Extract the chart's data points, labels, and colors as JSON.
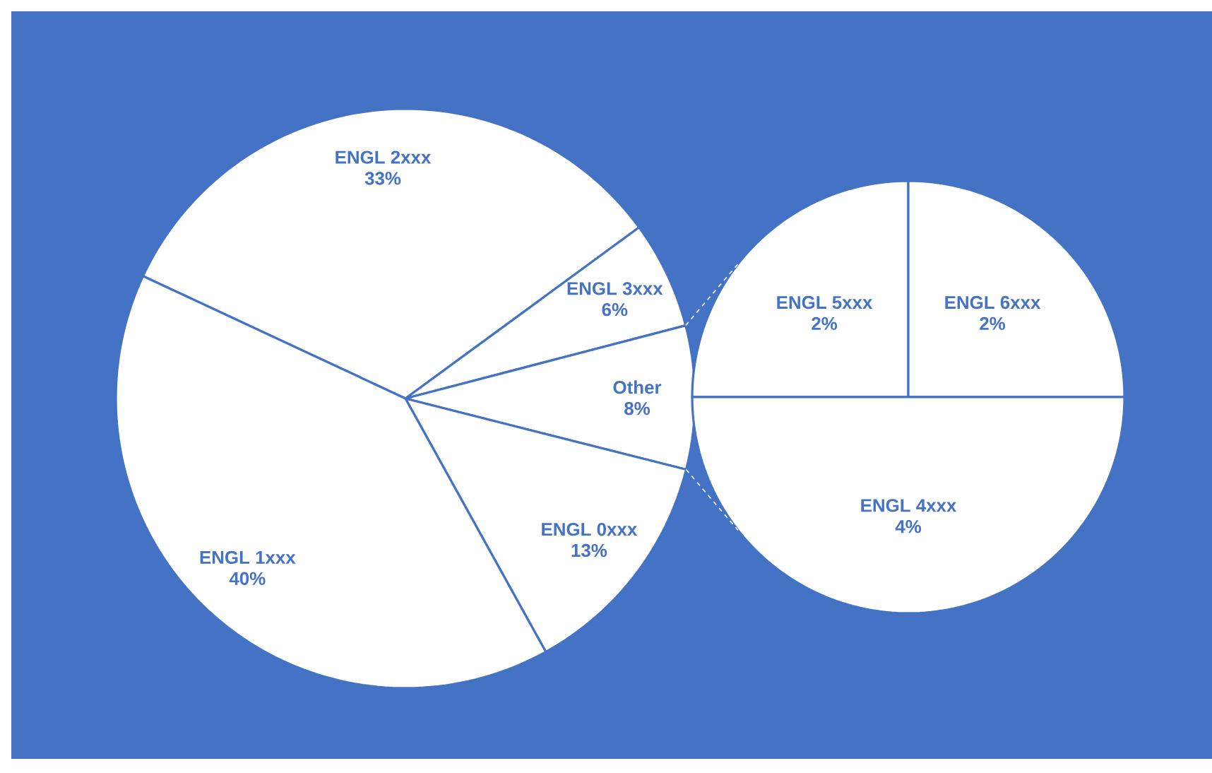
{
  "chart_data": [
    {
      "type": "pie",
      "categories": [
        "ENGL 2xxx",
        "ENGL 3xxx",
        "Other",
        "ENGL 0xxx",
        "ENGL 1xxx"
      ],
      "values": [
        33,
        6,
        8,
        13,
        40
      ],
      "value_labels": [
        "33%",
        "6%",
        "8%",
        "13%",
        "40%"
      ],
      "colors": [
        "#ffffff",
        "#ffffff",
        "#ffffff",
        "#ffffff",
        "#ffffff"
      ]
    },
    {
      "type": "pie",
      "categories": [
        "ENGL 5xxx",
        "ENGL 6xxx",
        "ENGL 4xxx"
      ],
      "values": [
        2,
        2,
        4
      ],
      "value_labels": [
        "2%",
        "2%",
        "4%"
      ],
      "colors": [
        "#ffffff",
        "#ffffff",
        "#ffffff"
      ]
    }
  ]
}
